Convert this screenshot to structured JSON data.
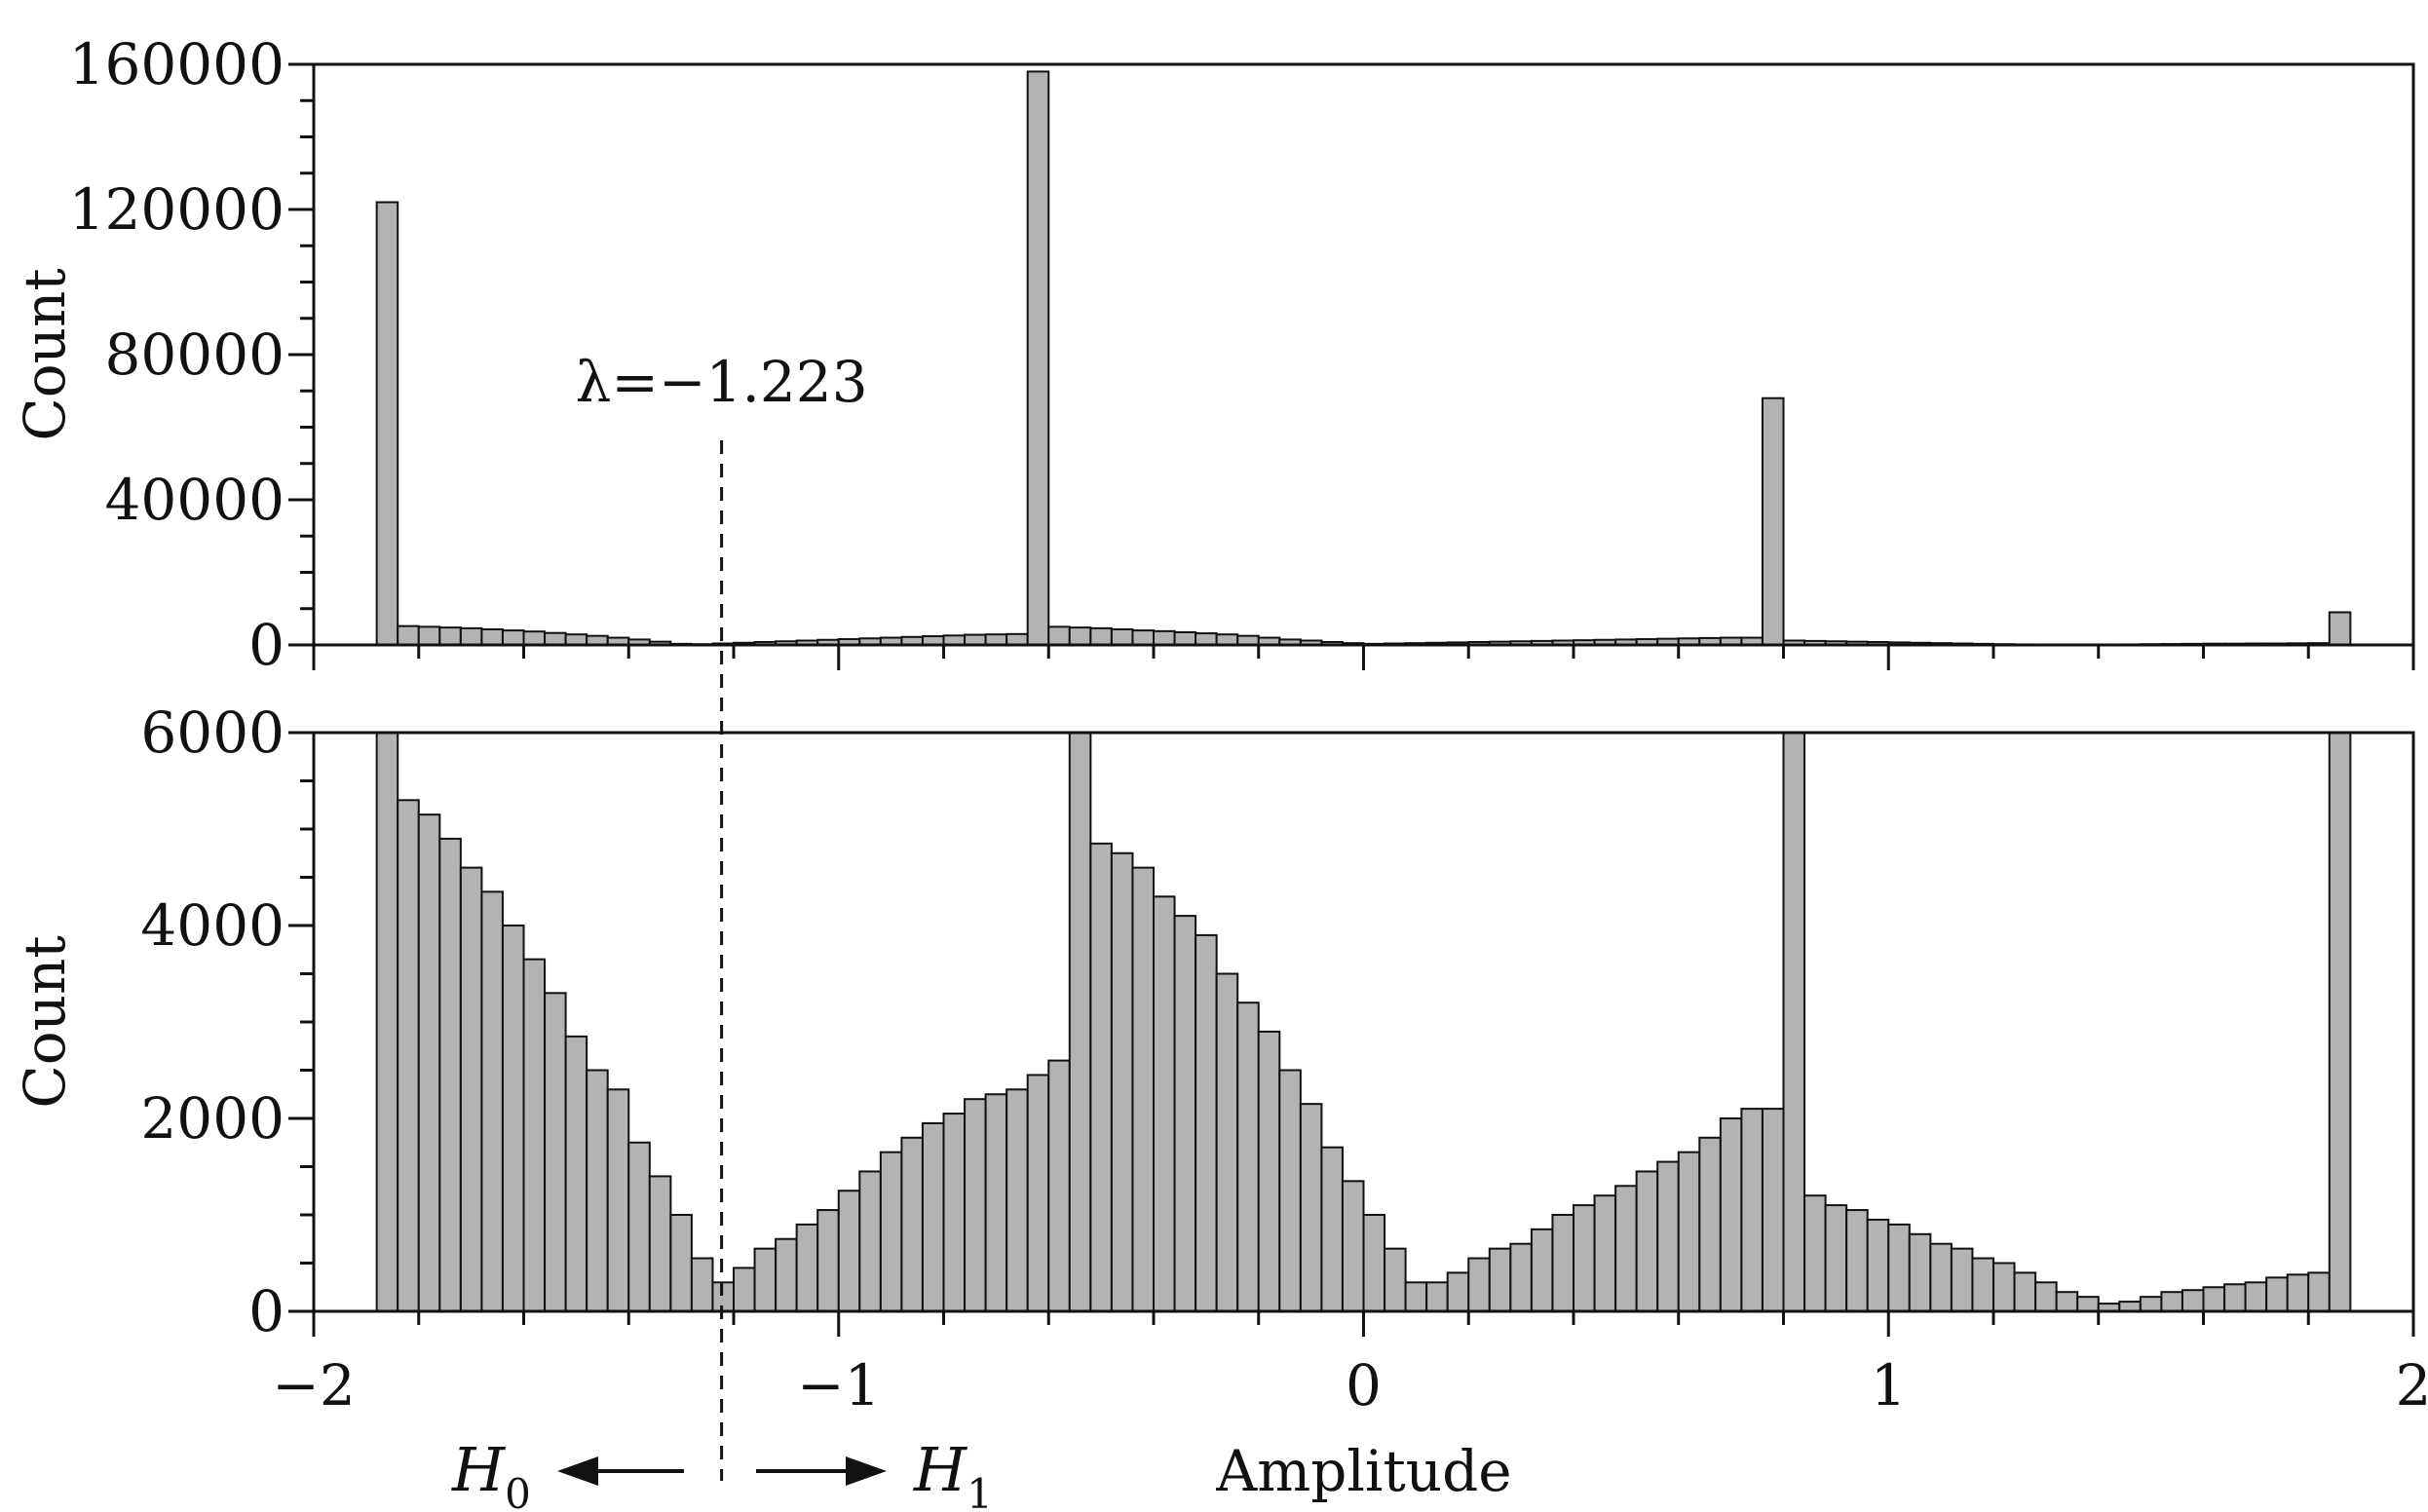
{
  "chart_data": [
    {
      "type": "bar",
      "panel": "top",
      "ylabel": "Count",
      "xlim": [
        -2,
        2
      ],
      "ylim": [
        0,
        160000
      ],
      "yticks": [
        0,
        40000,
        80000,
        120000,
        160000
      ],
      "ytick_labels": [
        "0",
        "40000",
        "80000",
        "120000",
        "160000"
      ],
      "bin_start": -1.88,
      "bin_width": 0.04,
      "values": [
        122000,
        5200,
        5000,
        4800,
        4600,
        4300,
        4000,
        3700,
        3300,
        2900,
        2500,
        2000,
        1500,
        900,
        300,
        200,
        400,
        600,
        800,
        1000,
        1200,
        1400,
        1600,
        1800,
        2000,
        2200,
        2400,
        2600,
        2800,
        2900,
        3000,
        158000,
        5000,
        4800,
        4600,
        4300,
        4000,
        3800,
        3500,
        3200,
        2900,
        2500,
        2000,
        1500,
        1200,
        800,
        500,
        300,
        400,
        500,
        600,
        700,
        800,
        900,
        1000,
        1100,
        1200,
        1300,
        1400,
        1500,
        1600,
        1700,
        1800,
        1900,
        2000,
        2000,
        68000,
        1200,
        1100,
        1000,
        900,
        800,
        700,
        600,
        500,
        400,
        300,
        200,
        150,
        100,
        50,
        50,
        100,
        150,
        200,
        250,
        300,
        350,
        350,
        400,
        400,
        450,
        500,
        9000
      ],
      "grid": false
    },
    {
      "type": "bar",
      "panel": "bottom",
      "xlabel": "Amplitude",
      "ylabel": "Count",
      "xlim": [
        -2,
        2
      ],
      "ylim": [
        0,
        6000
      ],
      "xticks": [
        -2,
        -1,
        0,
        1,
        2
      ],
      "xtick_labels": [
        "−2",
        "−1",
        "0",
        "1",
        "2"
      ],
      "yticks": [
        0,
        2000,
        4000,
        6000
      ],
      "ytick_labels": [
        "0",
        "2000",
        "4000",
        "6000"
      ],
      "bin_start": -1.88,
      "bin_width": 0.04,
      "values": [
        6000,
        5300,
        5150,
        4900,
        4600,
        4350,
        4000,
        3650,
        3300,
        2850,
        2500,
        2300,
        1750,
        1400,
        1000,
        550,
        300,
        450,
        650,
        750,
        900,
        1050,
        1250,
        1450,
        1650,
        1800,
        1950,
        2050,
        2200,
        2250,
        2300,
        2450,
        2600,
        6000,
        4850,
        4750,
        4600,
        4300,
        4100,
        3900,
        3500,
        3200,
        2900,
        2500,
        2150,
        1700,
        1350,
        1000,
        650,
        300,
        300,
        400,
        550,
        650,
        700,
        850,
        1000,
        1100,
        1200,
        1300,
        1450,
        1550,
        1650,
        1800,
        2000,
        2100,
        2100,
        6000,
        1200,
        1100,
        1050,
        950,
        900,
        800,
        700,
        650,
        550,
        500,
        400,
        300,
        200,
        150,
        80,
        100,
        150,
        200,
        220,
        250,
        280,
        300,
        350,
        380,
        400,
        6000
      ],
      "grid": false
    }
  ],
  "threshold": {
    "value": -1.223,
    "label": "λ=−1.223"
  },
  "hypotheses": {
    "left": "H",
    "left_sub": "0",
    "right": "H",
    "right_sub": "1"
  },
  "colors": {
    "bar_fill": "#b3b3b3",
    "bar_stroke": "#111111",
    "axis": "#111111"
  }
}
